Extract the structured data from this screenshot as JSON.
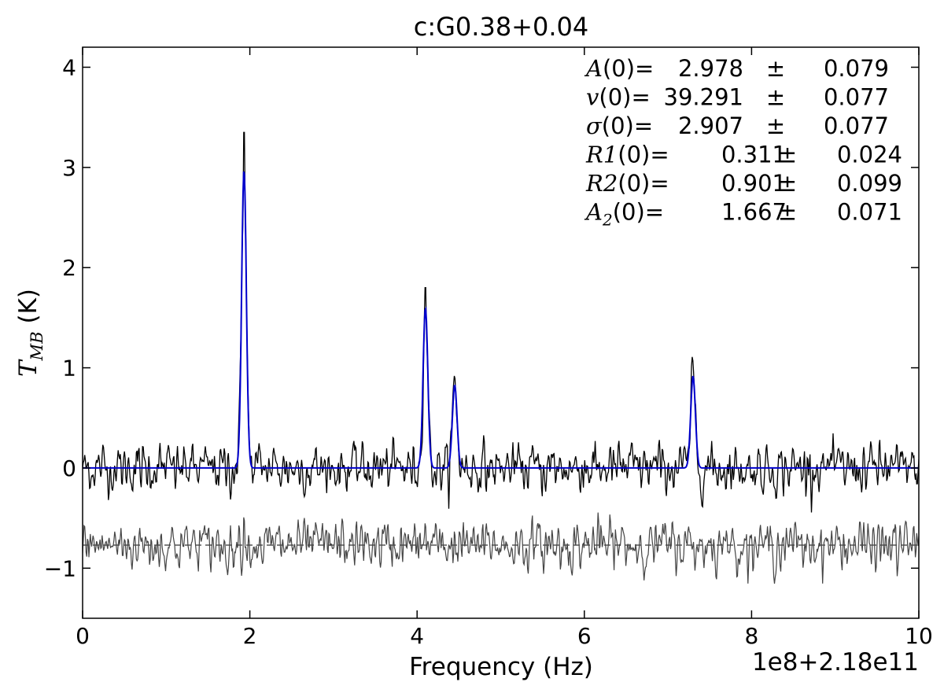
{
  "chart_data": {
    "type": "line",
    "title": "c:G0.38+0.04",
    "xlabel": "Frequency (Hz)",
    "ylabel_main": "T",
    "ylabel_sub": "MB",
    "ylabel_unit": " (K)",
    "x_offset_label": "1e8+2.18e11",
    "xlim": [
      0,
      10
    ],
    "ylim": [
      -1.5,
      4.2
    ],
    "xticks": [
      0,
      2,
      4,
      6,
      8,
      10
    ],
    "xtick_labels": [
      "0",
      "2",
      "4",
      "6",
      "8",
      "10"
    ],
    "yticks": [
      -1,
      0,
      1,
      2,
      3,
      4
    ],
    "ytick_labels": [
      "−1",
      "0",
      "1",
      "2",
      "3",
      "4"
    ],
    "grid": false,
    "residual_baseline": -0.77,
    "series": [
      {
        "role": "observed-spectrum",
        "color": "#000000",
        "noise_rms": 0.15,
        "peaks": [
          {
            "x": 1.93,
            "y": 3.35
          },
          {
            "x": 4.1,
            "y": 1.8
          },
          {
            "x": 4.45,
            "y": 0.85
          },
          {
            "x": 7.3,
            "y": 1.0
          }
        ]
      },
      {
        "role": "gaussian-fit",
        "color": "#0000cc",
        "peaks": [
          {
            "x": 1.93,
            "y": 2.98,
            "width": 0.028
          },
          {
            "x": 4.1,
            "y": 1.6,
            "width": 0.028
          },
          {
            "x": 4.45,
            "y": 0.83,
            "width": 0.028
          },
          {
            "x": 7.3,
            "y": 0.92,
            "width": 0.028
          }
        ]
      },
      {
        "role": "residual",
        "color": "#444444",
        "offset": -0.77,
        "noise_rms": 0.15
      }
    ],
    "annotations": [
      {
        "name": "A",
        "sub": "",
        "value": "2.978",
        "error": "0.079"
      },
      {
        "name": "v",
        "sub": "",
        "value": "39.291",
        "error": "0.077"
      },
      {
        "name": "σ",
        "sub": "",
        "value": "2.907",
        "error": "0.077"
      },
      {
        "name": "R1",
        "sub": "",
        "value": "0.311",
        "error": "0.024"
      },
      {
        "name": "R2",
        "sub": "",
        "value": "0.901",
        "error": "0.099"
      },
      {
        "name": "A",
        "sub": "2",
        "value": "1.667",
        "error": "0.071"
      }
    ],
    "annotation_index": "(0)=",
    "pm_symbol": "±"
  }
}
